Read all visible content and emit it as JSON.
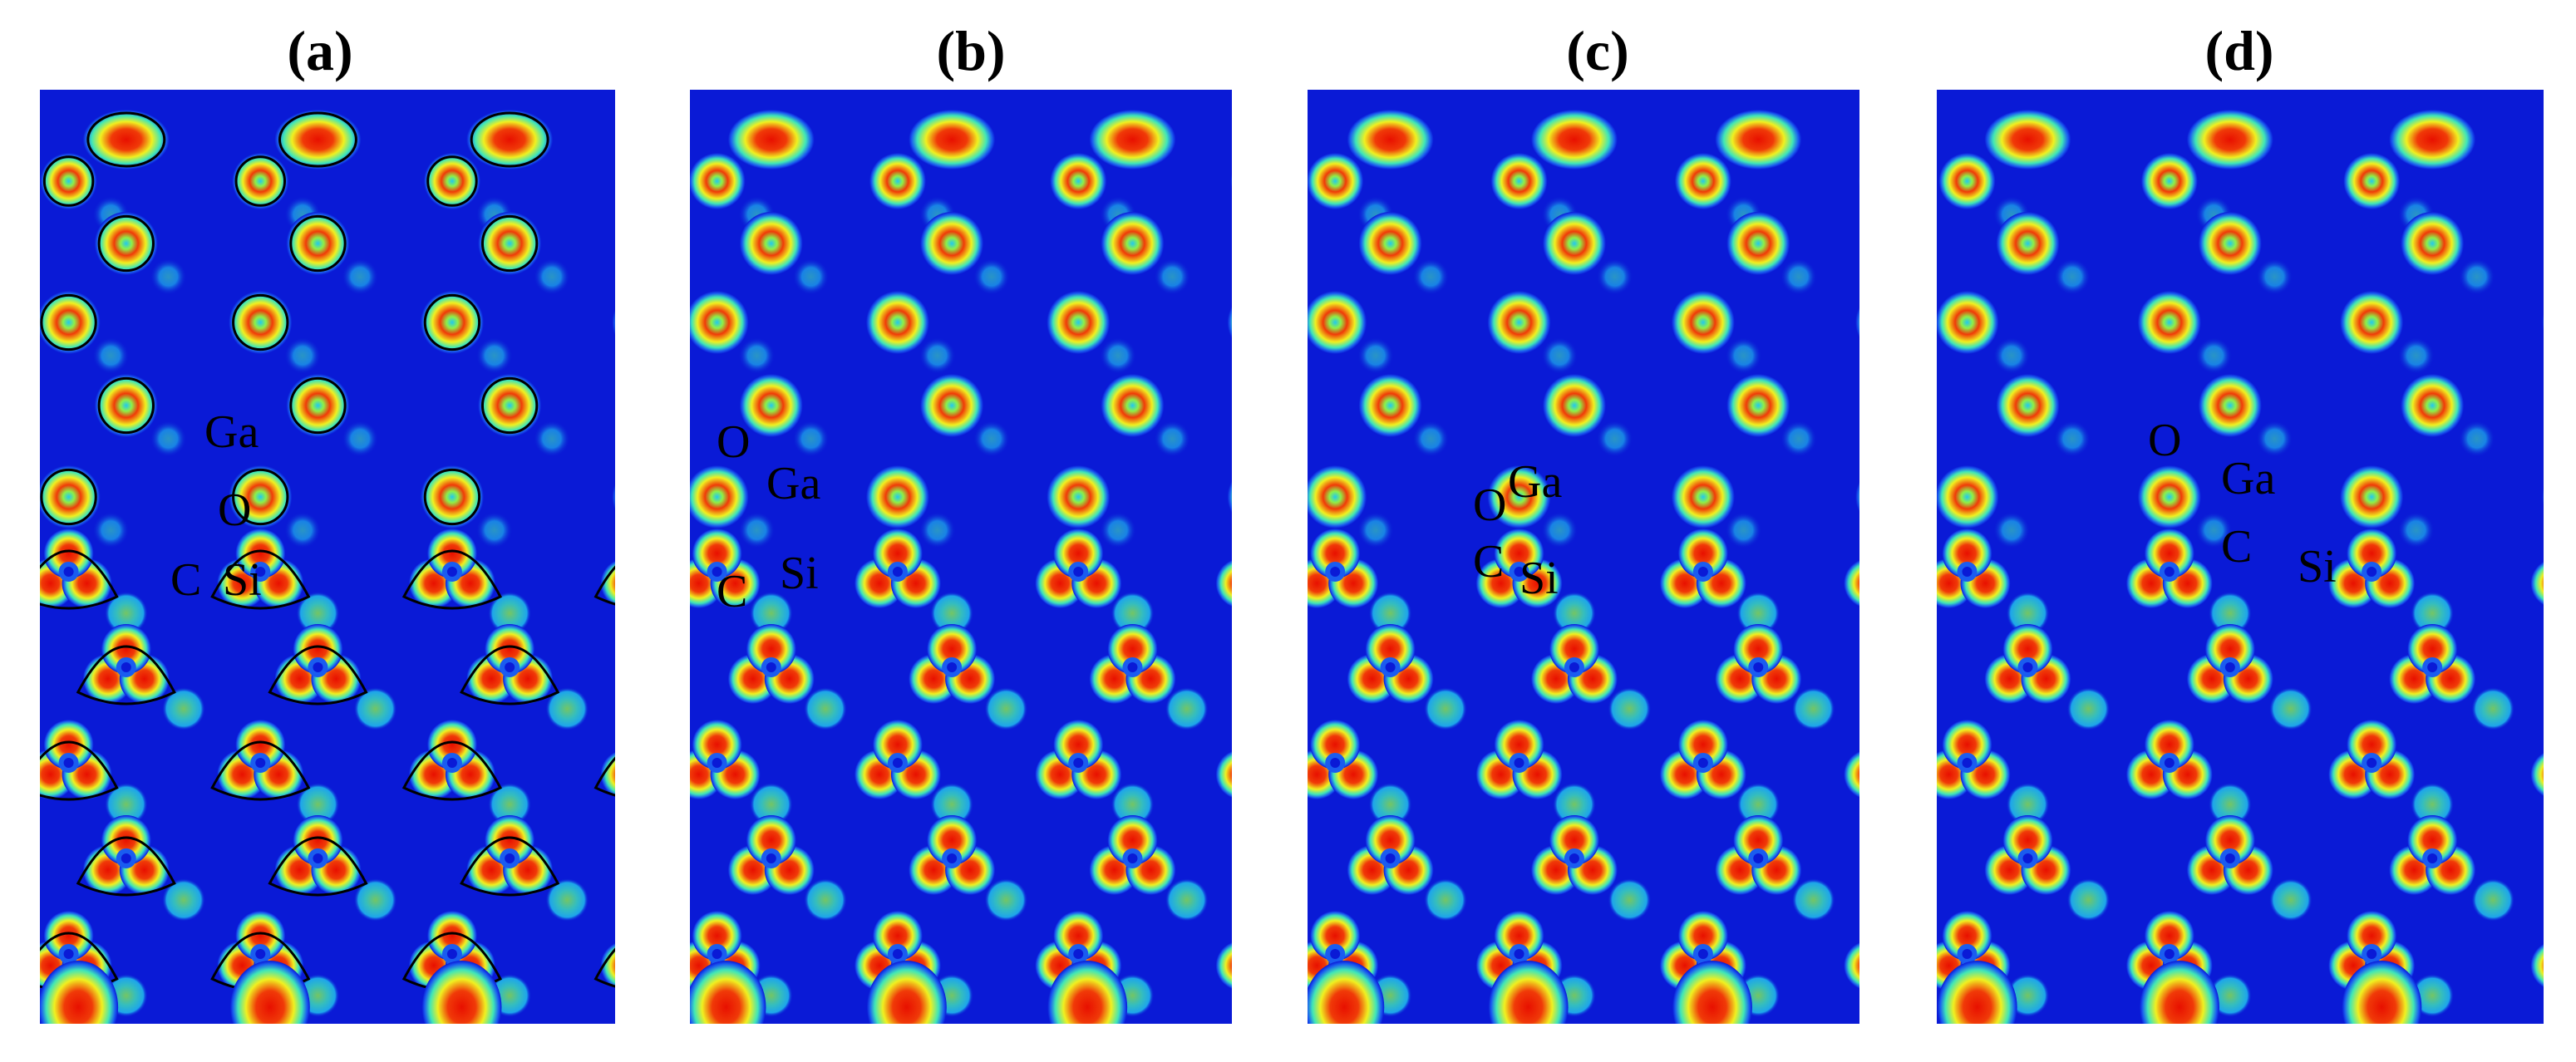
{
  "figure": {
    "panels": [
      {
        "id": "a",
        "title": "(a)",
        "labels": {
          "Ga": "Ga",
          "O": "O",
          "C": "C",
          "Si": "Si"
        }
      },
      {
        "id": "b",
        "title": "(b)",
        "labels": {
          "Ga": "Ga",
          "O": "O",
          "C": "C",
          "Si": "Si"
        }
      },
      {
        "id": "c",
        "title": "(c)",
        "labels": {
          "Ga": "Ga",
          "O": "O",
          "C": "C",
          "Si": "Si"
        }
      },
      {
        "id": "d",
        "title": "(d)",
        "labels": {
          "Ga": "Ga",
          "O": "O",
          "C": "C",
          "Si": "Si"
        }
      }
    ],
    "colormap": [
      "#0a1ad6",
      "#1a5cf0",
      "#22c8f0",
      "#3fe6b8",
      "#8ef048",
      "#f0f020",
      "#f8a010",
      "#f03a08",
      "#e81000"
    ]
  }
}
